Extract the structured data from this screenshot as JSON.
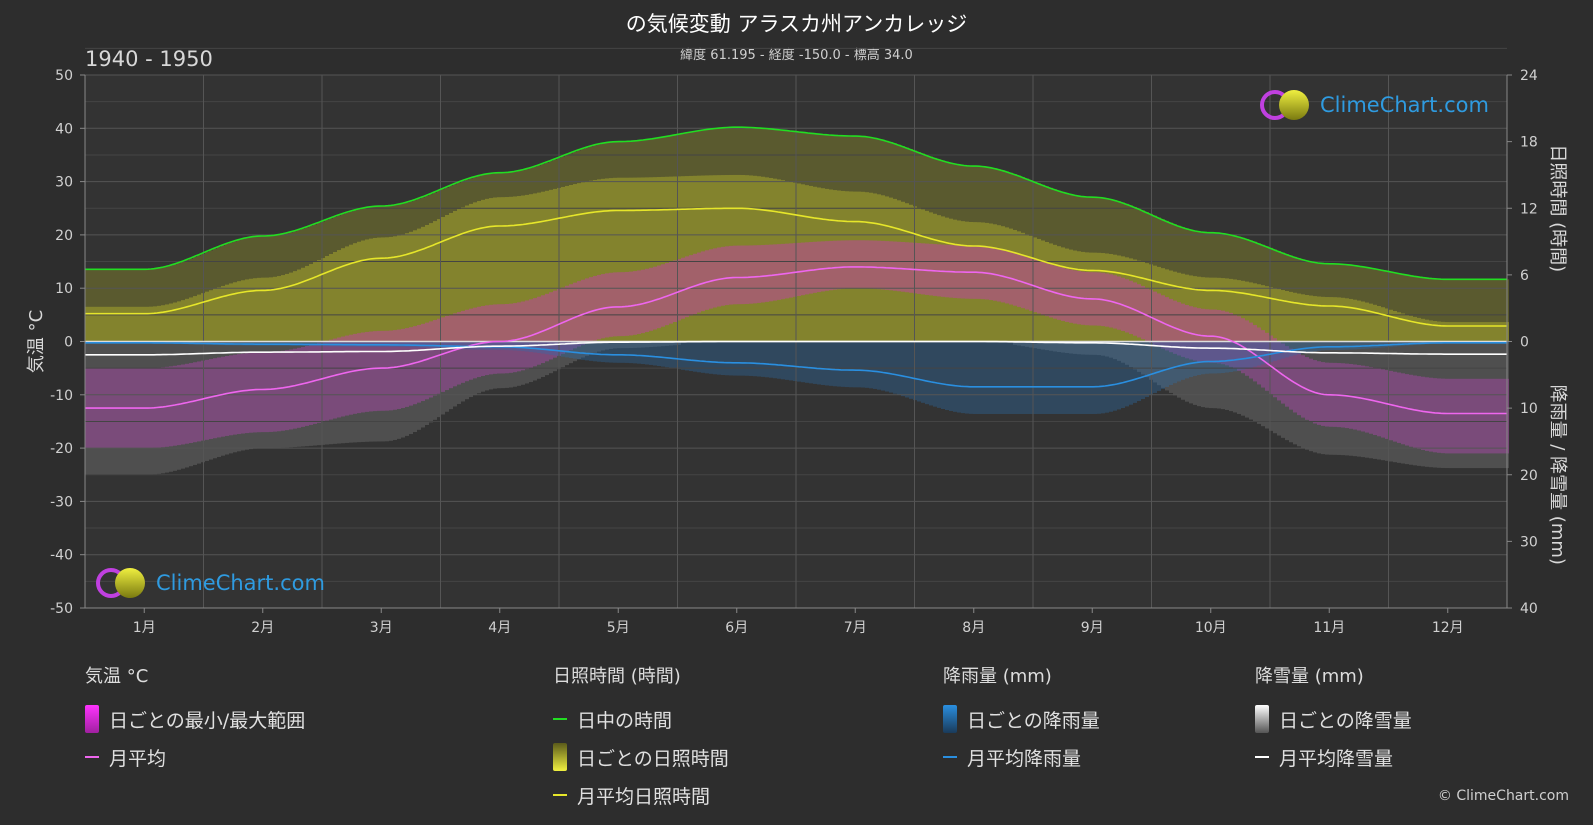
{
  "header": {
    "title": "の気候変動 アラスカ州アンカレッジ",
    "subtitle": "緯度 61.195 - 経度 -150.0 - 標高 34.0",
    "period": "1940 - 1950"
  },
  "logo": {
    "text": "ClimeChart.com"
  },
  "copyright": "© ClimeChart.com",
  "legend": {
    "temperature": {
      "title": "気温 °C",
      "range_label": "日ごとの最小/最大範囲",
      "avg_label": "月平均"
    },
    "sunshine": {
      "title": "日照時間 (時間)",
      "daylight_label": "日中の時間",
      "daily_label": "日ごとの日照時間",
      "avg_label": "月平均日照時間"
    },
    "rain": {
      "title": "降雨量 (mm)",
      "daily_label": "日ごとの降雨量",
      "avg_label": "月平均降雨量"
    },
    "snow": {
      "title": "降雪量 (mm)",
      "daily_label": "日ごとの降雪量",
      "avg_label": "月平均降雪量"
    }
  },
  "colors": {
    "background": "#2d2d2d",
    "plot_bg": "#333333",
    "daylight": "#22dd22",
    "sunshine": "#e6e62a",
    "temperature": "#ee66ee",
    "temp_range": "#dd22dd",
    "rain": "#2a8fe0",
    "snow": "#ffffff"
  },
  "chart_data": {
    "type": "line",
    "months": [
      "1月",
      "2月",
      "3月",
      "4月",
      "5月",
      "6月",
      "7月",
      "8月",
      "9月",
      "10月",
      "11月",
      "12月"
    ],
    "y_left": {
      "label": "気温 °C",
      "lim": [
        -50,
        50
      ],
      "ticks": [
        -50,
        -40,
        -30,
        -20,
        -10,
        0,
        10,
        20,
        30,
        40,
        50
      ]
    },
    "y_right_top": {
      "label": "日照時間 (時間)",
      "lim": [
        0,
        24
      ],
      "ticks": [
        0,
        6,
        12,
        18,
        24
      ]
    },
    "y_right_bottom": {
      "label": "降雨量 / 降雪量 (mm)",
      "lim": [
        0,
        40
      ],
      "ticks": [
        0,
        10,
        20,
        30,
        40
      ]
    },
    "grid": true,
    "series": [
      {
        "name": "日中の時間",
        "unit": "hours",
        "values": [
          6.5,
          9.5,
          12.2,
          15.2,
          18.0,
          19.3,
          18.5,
          15.8,
          13.0,
          9.8,
          7.0,
          5.6
        ]
      },
      {
        "name": "月平均日照時間",
        "unit": "hours",
        "values": [
          2.5,
          4.6,
          7.5,
          10.4,
          11.8,
          12.0,
          10.8,
          8.6,
          6.4,
          4.6,
          3.2,
          1.4
        ]
      },
      {
        "name": "月平均",
        "unit": "°C",
        "values": [
          -12.5,
          -9.0,
          -5.0,
          0.0,
          6.5,
          12.0,
          14.0,
          13.0,
          8.0,
          1.0,
          -10.0,
          -13.5
        ]
      },
      {
        "name": "月平均降雨量",
        "unit": "mm",
        "values": [
          0.2,
          0.4,
          0.5,
          0.8,
          2.0,
          3.2,
          4.3,
          6.8,
          6.8,
          3.0,
          0.8,
          0.2
        ]
      },
      {
        "name": "月平均降雪量",
        "unit": "mm",
        "values": [
          2.0,
          1.6,
          1.5,
          0.7,
          0.1,
          0.0,
          0.0,
          0.0,
          0.2,
          1.0,
          1.7,
          1.9
        ]
      },
      {
        "name": "日ごとの最小/最大範囲",
        "unit": "°C",
        "min": [
          -20,
          -17,
          -13,
          -6,
          1,
          7,
          10,
          8,
          3,
          -4,
          -16,
          -21
        ],
        "max": [
          -5,
          -2,
          2,
          7,
          13,
          18,
          19,
          18,
          13,
          6,
          -4,
          -7
        ]
      }
    ]
  }
}
